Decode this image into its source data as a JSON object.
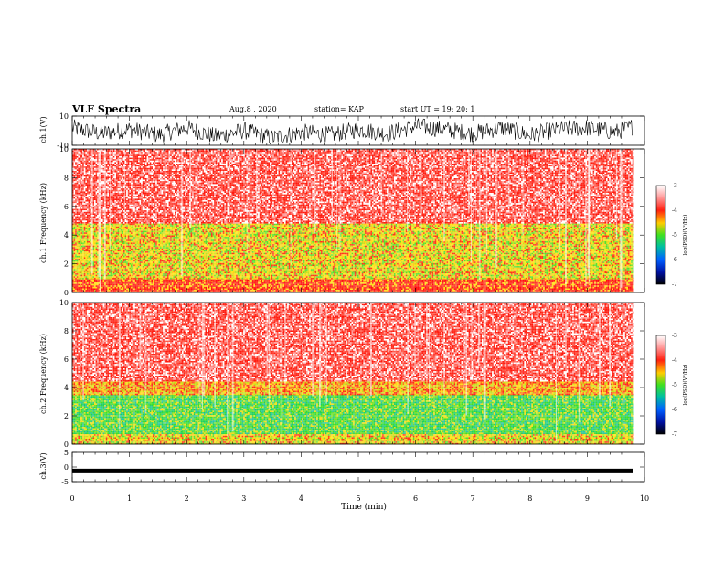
{
  "header": {
    "title": "VLF Spectra",
    "date": "Aug.8 , 2020",
    "station": "station= KAP",
    "start_ut": "start UT = 19: 20: 1"
  },
  "colors": {
    "background": "#ffffff",
    "spectrogram_red": "#ff2a1a",
    "spectrogram_yellow": "#f2e21a",
    "spectrogram_green": "#3fe02a",
    "trace": "#000000"
  },
  "chart_data": [
    {
      "type": "line",
      "name": "ch1-waveform",
      "ylabel": "ch.1(V)",
      "ylim": [
        -10,
        10
      ],
      "yticks": [
        "10",
        "-10"
      ],
      "xlim": [
        0,
        10
      ],
      "x": [
        0,
        0.5,
        1.0,
        1.5,
        2.0,
        2.5,
        3.0,
        3.5,
        4.0,
        4.5,
        5.0,
        5.5,
        6.0,
        6.5,
        7.0,
        7.5,
        8.0,
        8.5,
        9.0,
        9.5,
        9.8
      ],
      "values": [
        2,
        -2,
        1,
        -3,
        2,
        -4,
        0,
        -5,
        -1,
        -3,
        1,
        -2,
        3,
        1,
        -2,
        2,
        -3,
        1,
        2,
        -1,
        3
      ],
      "note_style": "dense noisy trace"
    },
    {
      "type": "heatmap",
      "name": "ch1-spectrogram",
      "ylabel": "ch.1 Frequency (kHz)",
      "ylim": [
        0,
        10
      ],
      "yticks": [
        "10",
        "8",
        "6",
        "4",
        "2",
        "0"
      ],
      "xlim": [
        0,
        10
      ],
      "data_end_min": 9.8,
      "colorbar": {
        "label": "log(PSD)(V²/Hz)",
        "range": [
          -7,
          -3
        ],
        "ticks": [
          "-3",
          "-4",
          "-5",
          "-6",
          "-7"
        ],
        "scale": "rainbow"
      },
      "bands_kHz": [
        {
          "from": 0,
          "to": 1.0,
          "level": "red"
        },
        {
          "from": 1.0,
          "to": 4.9,
          "level": "yellow-green"
        },
        {
          "from": 4.9,
          "to": 10,
          "level": "red-white"
        }
      ]
    },
    {
      "type": "heatmap",
      "name": "ch2-spectrogram",
      "ylabel": "ch.2 Frequency (kHz)",
      "ylim": [
        0,
        10
      ],
      "yticks": [
        "10",
        "8",
        "6",
        "4",
        "2",
        "0"
      ],
      "xlim": [
        0,
        10
      ],
      "data_end_min": 9.8,
      "colorbar": {
        "label": "log(PSD)(V²/Hz)",
        "range": [
          -7,
          -3
        ],
        "ticks": [
          "-3",
          "-4",
          "-5",
          "-6",
          "-7"
        ],
        "scale": "rainbow"
      },
      "bands_kHz": [
        {
          "from": 0,
          "to": 0.8,
          "level": "yellow-green"
        },
        {
          "from": 0.8,
          "to": 3.5,
          "level": "green"
        },
        {
          "from": 3.5,
          "to": 4.5,
          "level": "yellow"
        },
        {
          "from": 4.5,
          "to": 10,
          "level": "red-white"
        }
      ]
    },
    {
      "type": "line",
      "name": "ch3-waveform",
      "ylabel": "ch.3(V)",
      "ylim": [
        -5,
        5
      ],
      "yticks": [
        "5",
        "0",
        "-5"
      ],
      "xlim": [
        0,
        10
      ],
      "x": [
        0,
        9.8
      ],
      "values": [
        -1.2,
        -1.2
      ],
      "note_style": "thick flat trace"
    }
  ],
  "xaxis": {
    "label": "Time (min)",
    "ticks": [
      "0",
      "1",
      "2",
      "3",
      "4",
      "5",
      "6",
      "7",
      "8",
      "9",
      "10"
    ]
  }
}
